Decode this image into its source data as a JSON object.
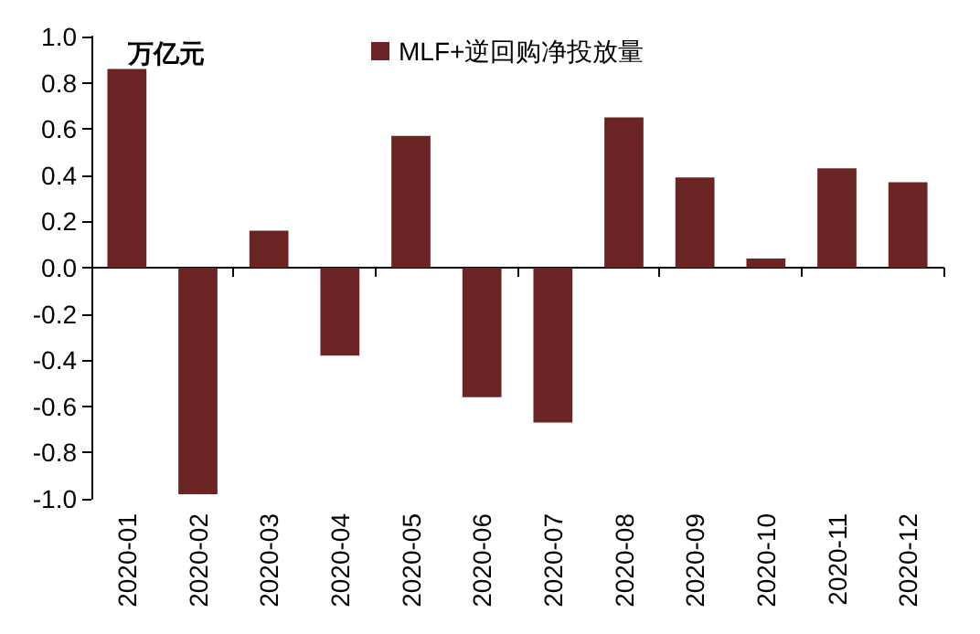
{
  "chart_data": {
    "type": "bar",
    "categories": [
      "2020-01",
      "2020-02",
      "2020-03",
      "2020-04",
      "2020-05",
      "2020-06",
      "2020-07",
      "2020-08",
      "2020-09",
      "2020-10",
      "2020-11",
      "2020-12"
    ],
    "series": [
      {
        "name": "MLF+逆回购净投放量",
        "color": "#6b2424",
        "values": [
          0.86,
          -0.98,
          0.16,
          -0.38,
          0.57,
          -0.56,
          -0.67,
          0.65,
          0.39,
          0.04,
          0.43,
          0.37
        ]
      }
    ],
    "ylim": [
      -1,
      1
    ],
    "yticks": [
      {
        "value": -1,
        "label": "-1.0"
      },
      -0.8,
      -0.6,
      -0.4,
      -0.2,
      {
        "value": 0,
        "label": "0.0"
      },
      0.2,
      0.4,
      0.6,
      0.8,
      {
        "value": 1,
        "label": "1.0"
      }
    ],
    "annotations": [
      "万亿元"
    ],
    "legend": "top"
  }
}
